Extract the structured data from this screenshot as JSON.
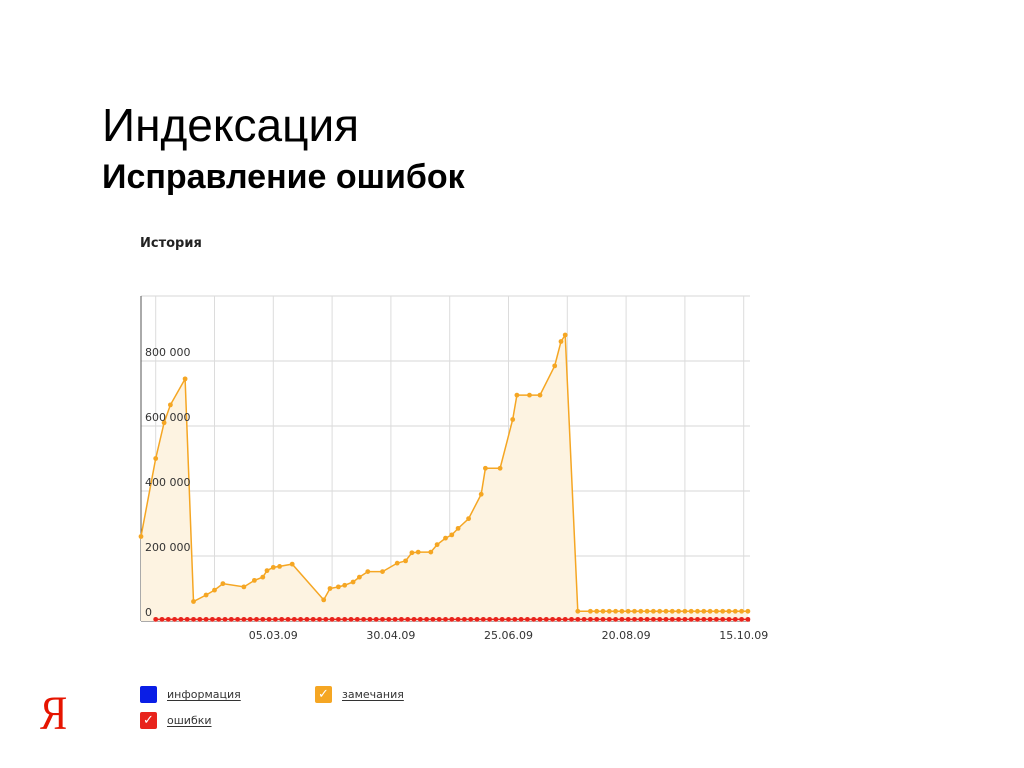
{
  "slide": {
    "title": "Индексация",
    "subtitle": "Исправление ошибок"
  },
  "logo": {
    "text": "Я",
    "color": "#e61400"
  },
  "chart_data": {
    "type": "line",
    "title": "История",
    "ylim": [
      0,
      1000000
    ],
    "y_ticks": [
      0,
      200000,
      400000,
      600000,
      800000
    ],
    "y_tick_labels": [
      "0",
      "200 000",
      "400 000",
      "600 000",
      "800 000"
    ],
    "x_tick_labels": [
      "05.03.09",
      "30.04.09",
      "25.06.09",
      "20.08.09",
      "15.10.09"
    ],
    "x_tick_dates": [
      "2009-03-05",
      "2009-04-30",
      "2009-06-25",
      "2009-08-20",
      "2009-10-15"
    ],
    "xlim": [
      "2009-01-01",
      "2009-10-18"
    ],
    "grid": true,
    "legend_position": "bottom",
    "series": [
      {
        "name": "замечания",
        "color": "#f5a623",
        "fill": "#fdf3e1",
        "checked": true,
        "points": [
          [
            "2009-01-01",
            260000
          ],
          [
            "2009-01-08",
            500000
          ],
          [
            "2009-01-12",
            610000
          ],
          [
            "2009-01-15",
            665000
          ],
          [
            "2009-01-22",
            745000
          ],
          [
            "2009-01-26",
            60000
          ],
          [
            "2009-02-01",
            80000
          ],
          [
            "2009-02-05",
            95000
          ],
          [
            "2009-02-09",
            115000
          ],
          [
            "2009-02-19",
            105000
          ],
          [
            "2009-02-24",
            125000
          ],
          [
            "2009-02-28",
            135000
          ],
          [
            "2009-03-02",
            155000
          ],
          [
            "2009-03-05",
            165000
          ],
          [
            "2009-03-08",
            168000
          ],
          [
            "2009-03-14",
            175000
          ],
          [
            "2009-03-29",
            65000
          ],
          [
            "2009-04-01",
            100000
          ],
          [
            "2009-04-05",
            105000
          ],
          [
            "2009-04-08",
            110000
          ],
          [
            "2009-04-12",
            120000
          ],
          [
            "2009-04-15",
            135000
          ],
          [
            "2009-04-19",
            152000
          ],
          [
            "2009-04-26",
            152000
          ],
          [
            "2009-05-03",
            178000
          ],
          [
            "2009-05-07",
            185000
          ],
          [
            "2009-05-10",
            210000
          ],
          [
            "2009-05-13",
            212000
          ],
          [
            "2009-05-19",
            212000
          ],
          [
            "2009-05-22",
            235000
          ],
          [
            "2009-05-26",
            255000
          ],
          [
            "2009-05-29",
            265000
          ],
          [
            "2009-06-01",
            285000
          ],
          [
            "2009-06-06",
            315000
          ],
          [
            "2009-06-12",
            390000
          ],
          [
            "2009-06-14",
            470000
          ],
          [
            "2009-06-21",
            470000
          ],
          [
            "2009-06-27",
            620000
          ],
          [
            "2009-06-29",
            695000
          ],
          [
            "2009-07-05",
            695000
          ],
          [
            "2009-07-10",
            695000
          ],
          [
            "2009-07-17",
            785000
          ],
          [
            "2009-07-20",
            860000
          ],
          [
            "2009-07-22",
            880000
          ],
          [
            "2009-07-28",
            30000
          ],
          [
            "2009-08-03",
            30000
          ]
        ],
        "tail": {
          "from": "2009-08-03",
          "to": "2009-10-18",
          "value": 30000
        }
      },
      {
        "name": "ошибки",
        "color": "#e8231c",
        "checked": true,
        "value": 5000,
        "from": "2009-01-08",
        "to": "2009-10-18"
      },
      {
        "name": "информация",
        "color": "#0a1ee6",
        "checked": false
      }
    ]
  }
}
